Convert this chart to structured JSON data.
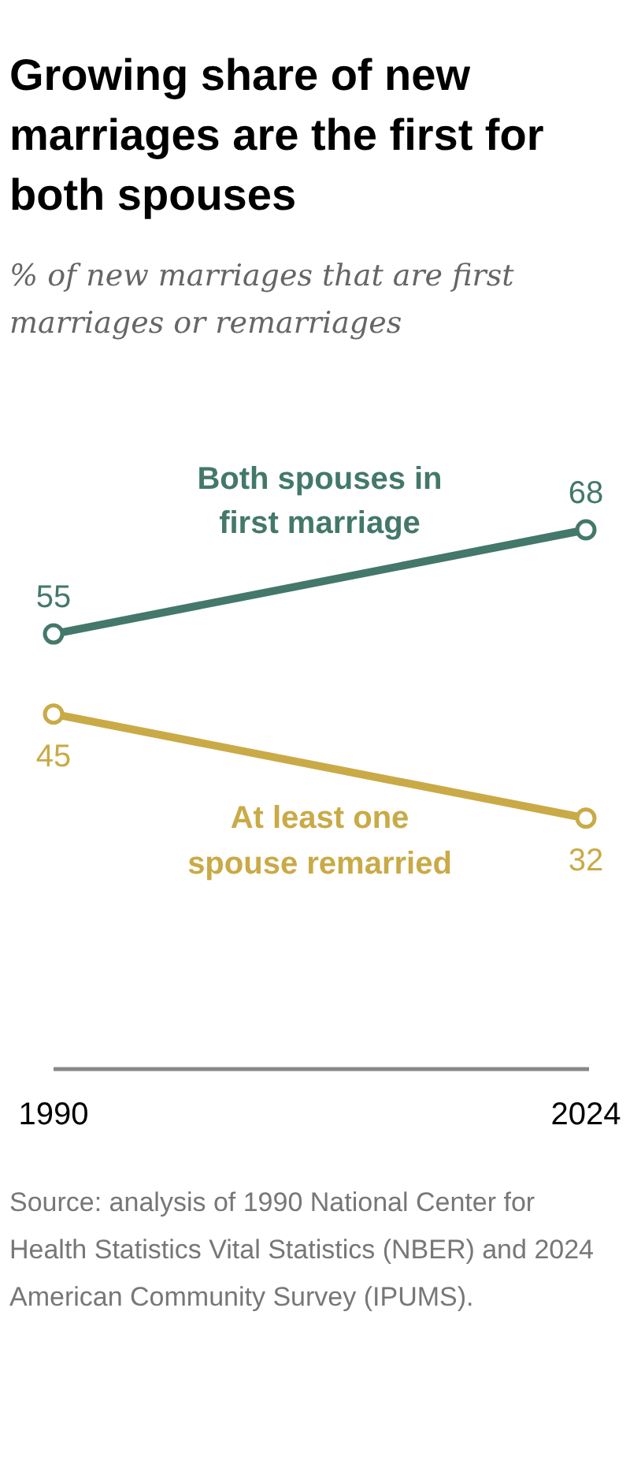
{
  "chart_data": {
    "type": "line",
    "title": "Growing share of new marriages are the first for both spouses",
    "subtitle": "% of new marriages that are first marriages or remarriages",
    "categories": [
      "1990",
      "2024"
    ],
    "series": [
      {
        "name": "Both spouses in first marriage",
        "color": "#43786a",
        "values": [
          55,
          68
        ]
      },
      {
        "name": "At least one spouse remarried",
        "color": "#c9aa47",
        "values": [
          45,
          32
        ]
      }
    ],
    "marker": "circle",
    "data_labels": true,
    "annotations": [
      "Source: analysis of 1990 National Center for Health Statistics Vital Statistics (NBER) and 2024 American Community Survey (IPUMS)."
    ]
  }
}
